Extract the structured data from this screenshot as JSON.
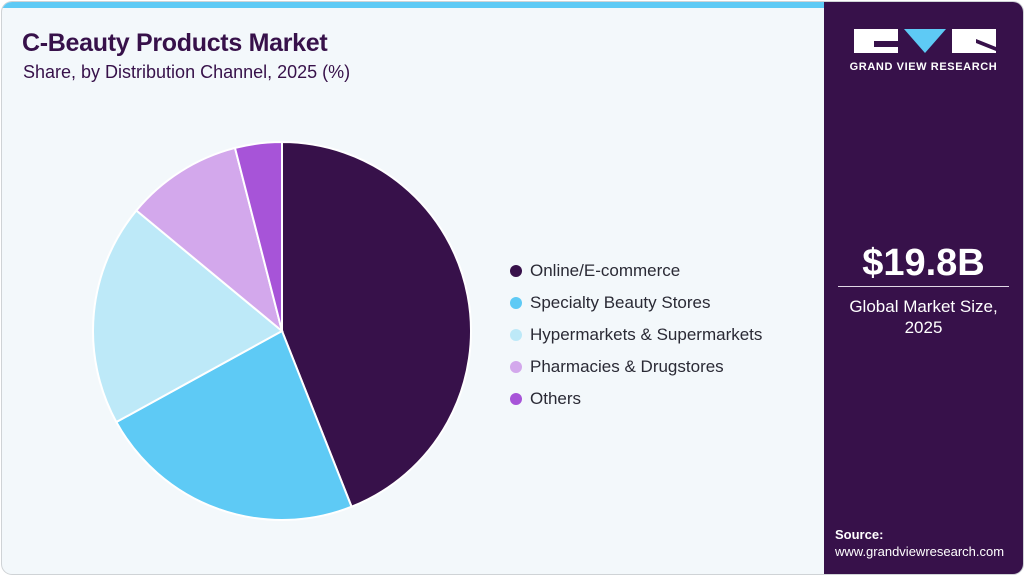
{
  "header": {
    "title": "C-Beauty Products Market",
    "subtitle": "Share, by Distribution Channel, 2025 (%)"
  },
  "colors": {
    "accent_bar": "#5ecaf5",
    "sidebar_bg": "#37114a",
    "card_bg": "#f3f8fb"
  },
  "sidebar": {
    "logo_text": "GRAND VIEW RESEARCH",
    "market_value": "$19.8B",
    "market_label_line1": "Global Market Size,",
    "market_label_line2": "2025",
    "source_label": "Source:",
    "source_url": "www.grandviewresearch.com"
  },
  "chart_data": {
    "type": "pie",
    "title": "C-Beauty Products Market",
    "subtitle": "Share, by Distribution Channel, 2025 (%)",
    "categories": [
      "Online/E-commerce",
      "Specialty Beauty Stores",
      "Hypermarkets & Supermarkets",
      "Pharmacies & Drugstores",
      "Others"
    ],
    "values": [
      44,
      23,
      19,
      10,
      4
    ],
    "colors": [
      "#37114a",
      "#5ecaf5",
      "#bde9f8",
      "#d3a8ec",
      "#a754d8"
    ],
    "start_angle_deg": 0,
    "direction": "clockwise",
    "legend_position": "right",
    "unit": "%"
  }
}
